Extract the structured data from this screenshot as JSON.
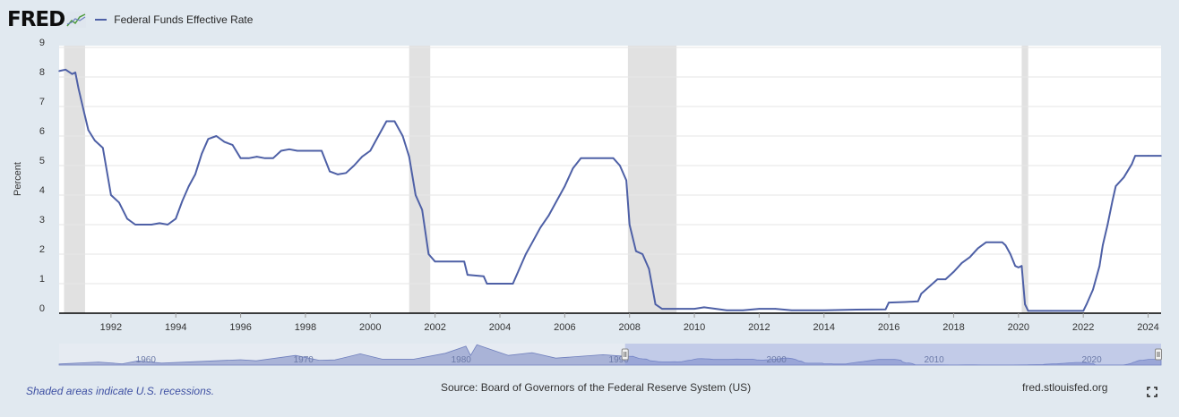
{
  "header": {
    "logo": "FRED",
    "logo_icon": "fred-graph-icon"
  },
  "footer": {
    "note": "Shaded areas indicate U.S. recessions.",
    "source": "Source: Board of Governors of the Federal Reserve System (US)",
    "url": "fred.stlouisfed.org",
    "fullscreen_icon": "fullscreen-icon"
  },
  "colors": {
    "background": "#e1e9f0",
    "plot_background": "#ffffff",
    "series": "#4e60a6",
    "recession": "#e1e1e1",
    "navigator_fill": "#a9b3da"
  },
  "chart_data": {
    "type": "line",
    "title": "",
    "xlabel": "",
    "ylabel": "Percent",
    "xlim": [
      1990.4,
      2024.4
    ],
    "ylim": [
      0,
      9
    ],
    "grid": true,
    "legend_position": "top-left",
    "y_ticks": [
      "0",
      "1",
      "2",
      "3",
      "4",
      "5",
      "6",
      "7",
      "8",
      "9"
    ],
    "x_ticks": [
      "1992",
      "1994",
      "1996",
      "1998",
      "2000",
      "2002",
      "2004",
      "2006",
      "2008",
      "2010",
      "2012",
      "2014",
      "2016",
      "2018",
      "2020",
      "2022",
      "2024"
    ],
    "recessions": [
      [
        1990.55,
        1991.2
      ],
      [
        2001.2,
        2001.85
      ],
      [
        2007.95,
        2009.45
      ],
      [
        2020.1,
        2020.3
      ]
    ],
    "series": [
      {
        "name": "Federal Funds Effective Rate",
        "x": [
          1990.4,
          1990.6,
          1990.8,
          1990.9,
          1991.0,
          1991.15,
          1991.3,
          1991.5,
          1991.75,
          1992.0,
          1992.25,
          1992.5,
          1992.75,
          1993.0,
          1993.25,
          1993.5,
          1993.75,
          1994.0,
          1994.2,
          1994.4,
          1994.6,
          1994.8,
          1995.0,
          1995.25,
          1995.5,
          1995.75,
          1996.0,
          1996.25,
          1996.5,
          1996.75,
          1997.0,
          1997.25,
          1997.5,
          1997.75,
          1998.0,
          1998.25,
          1998.5,
          1998.75,
          1999.0,
          1999.25,
          1999.5,
          1999.75,
          2000.0,
          2000.25,
          2000.5,
          2000.75,
          2001.0,
          2001.2,
          2001.4,
          2001.6,
          2001.8,
          2002.0,
          2002.5,
          2002.9,
          2003.0,
          2003.5,
          2003.6,
          2004.0,
          2004.4,
          2004.6,
          2004.8,
          2005.0,
          2005.25,
          2005.5,
          2005.75,
          2006.0,
          2006.25,
          2006.5,
          2007.0,
          2007.5,
          2007.7,
          2007.9,
          2008.0,
          2008.2,
          2008.4,
          2008.6,
          2008.8,
          2009.0,
          2009.5,
          2010.0,
          2010.3,
          2011.0,
          2011.5,
          2012.0,
          2012.5,
          2013.0,
          2014.0,
          2015.0,
          2015.9,
          2016.0,
          2016.5,
          2016.9,
          2017.0,
          2017.25,
          2017.5,
          2017.75,
          2018.0,
          2018.25,
          2018.5,
          2018.75,
          2019.0,
          2019.5,
          2019.6,
          2019.75,
          2019.9,
          2020.0,
          2020.1,
          2020.2,
          2020.3,
          2021.0,
          2022.0,
          2022.1,
          2022.3,
          2022.5,
          2022.6,
          2022.75,
          2022.9,
          2023.0,
          2023.25,
          2023.5,
          2023.6,
          2024.0,
          2024.4
        ],
        "values": [
          8.2,
          8.25,
          8.1,
          8.15,
          7.6,
          6.9,
          6.2,
          5.85,
          5.6,
          4.0,
          3.75,
          3.2,
          3.0,
          3.0,
          3.0,
          3.05,
          3.0,
          3.2,
          3.8,
          4.3,
          4.7,
          5.4,
          5.9,
          6.0,
          5.8,
          5.7,
          5.25,
          5.25,
          5.3,
          5.25,
          5.25,
          5.5,
          5.55,
          5.5,
          5.5,
          5.5,
          5.5,
          4.8,
          4.7,
          4.75,
          5.0,
          5.3,
          5.5,
          6.0,
          6.5,
          6.5,
          6.0,
          5.3,
          4.0,
          3.5,
          2.0,
          1.75,
          1.75,
          1.75,
          1.3,
          1.25,
          1.0,
          1.0,
          1.0,
          1.5,
          2.0,
          2.4,
          2.9,
          3.3,
          3.8,
          4.3,
          4.9,
          5.25,
          5.25,
          5.25,
          5.0,
          4.5,
          3.0,
          2.1,
          2.0,
          1.5,
          0.3,
          0.15,
          0.15,
          0.15,
          0.2,
          0.1,
          0.1,
          0.15,
          0.15,
          0.1,
          0.1,
          0.12,
          0.13,
          0.36,
          0.38,
          0.4,
          0.66,
          0.9,
          1.15,
          1.15,
          1.4,
          1.7,
          1.9,
          2.2,
          2.4,
          2.4,
          2.3,
          2.0,
          1.6,
          1.55,
          1.6,
          0.3,
          0.08,
          0.08,
          0.08,
          0.3,
          0.8,
          1.6,
          2.3,
          3.0,
          3.8,
          4.3,
          4.6,
          5.05,
          5.33,
          5.33,
          5.33
        ]
      }
    ]
  },
  "navigator": {
    "labels": [
      "1960",
      "1970",
      "1980",
      "1990",
      "2000",
      "2010",
      "2020"
    ],
    "start_year": 1954.5,
    "end_year": 2024.4,
    "selection_start": 1990.4,
    "selection_end": 2024.4,
    "history": [
      [
        1954.5,
        1.0
      ],
      [
        1957,
        2.8
      ],
      [
        1958.5,
        1.2
      ],
      [
        1959.5,
        3.9
      ],
      [
        1961,
        1.8
      ],
      [
        1966,
        5.0
      ],
      [
        1967,
        4.0
      ],
      [
        1969.5,
        9.0
      ],
      [
        1971,
        4.5
      ],
      [
        1972,
        4.8
      ],
      [
        1973.6,
        10.5
      ],
      [
        1975,
        5.5
      ],
      [
        1977,
        5.5
      ],
      [
        1979,
        11.0
      ],
      [
        1980.3,
        17.6
      ],
      [
        1980.6,
        9.0
      ],
      [
        1981,
        19.0
      ],
      [
        1982,
        14.0
      ],
      [
        1983,
        9.0
      ],
      [
        1984.5,
        11.6
      ],
      [
        1986,
        6.5
      ],
      [
        1989,
        9.7
      ],
      [
        1990.4,
        8.2
      ]
    ]
  }
}
